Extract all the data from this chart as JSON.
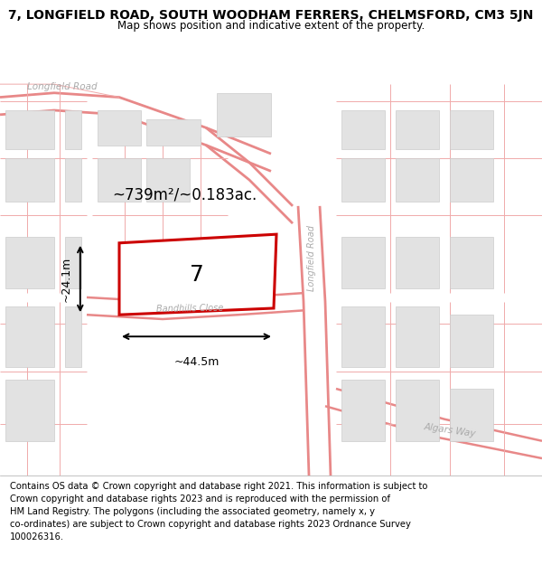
{
  "title": "7, LONGFIELD ROAD, SOUTH WOODHAM FERRERS, CHELMSFORD, CM3 5JN",
  "subtitle": "Map shows position and indicative extent of the property.",
  "footer_lines": [
    "Contains OS data © Crown copyright and database right 2021. This information is subject to Crown copyright and database rights 2023 and is reproduced with the permission of",
    "HM Land Registry. The polygons (including the associated geometry, namely x, y co-ordinates) are subject to Crown copyright and database rights 2023 Ordnance Survey",
    "100026316."
  ],
  "area_label": "~739m²/~0.183ac.",
  "width_label": "~44.5m",
  "height_label": "~24.1m",
  "plot_label": "7",
  "plot_edge_color": "#cc0000",
  "plot_fill_color": "#ffffff",
  "block_fill": "#e2e2e2",
  "block_edge": "#cccccc",
  "road_color": "#e88888",
  "road_color_light": "#f0aaaa",
  "map_bg": "#f0f0f0",
  "title_fontsize": 10,
  "subtitle_fontsize": 8.5,
  "footer_fontsize": 7.2,
  "map_label_color": "#aaaaaa"
}
